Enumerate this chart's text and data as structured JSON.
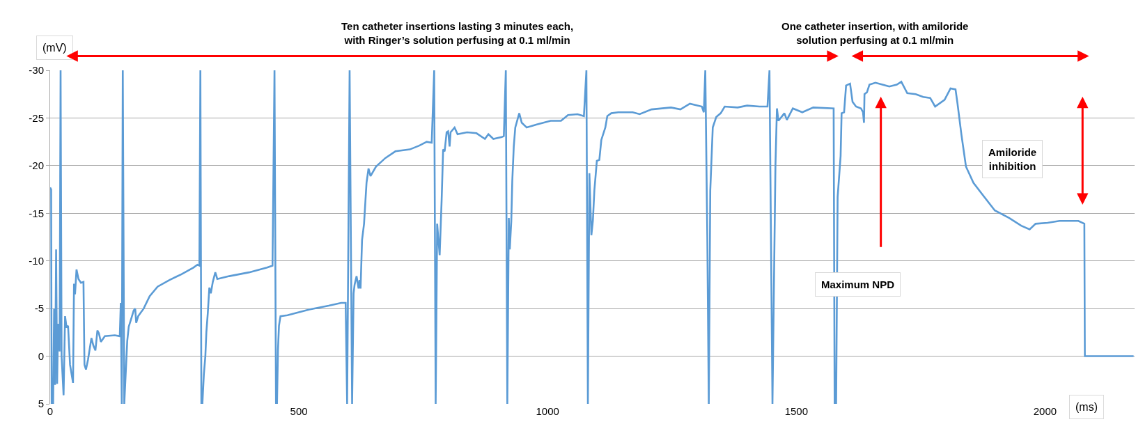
{
  "chart_data": {
    "type": "line",
    "xlabel": "(ms)",
    "ylabel": "(mV)",
    "annotations": [
      "Ten catheter insertions lasting 3 minutes each,\nwith Ringer’s solution perfusing at 0.1 ml/min",
      "One catheter insertion, with amiloride\nsolution perfusing at 0.1 ml/min",
      "Maximum NPD",
      "Amiloride\ninhibition"
    ],
    "x": [
      0,
      2,
      3,
      6,
      8,
      10,
      12,
      14,
      16,
      19,
      21,
      23,
      27,
      30,
      33,
      36,
      40,
      46,
      48,
      50,
      53,
      57,
      62,
      67,
      69,
      72,
      76,
      83,
      87,
      91,
      95,
      98,
      102,
      110,
      130,
      140,
      142,
      144,
      146,
      149,
      152,
      155,
      158,
      164,
      168,
      171,
      173,
      177,
      188,
      200,
      216,
      240,
      264,
      288,
      296,
      300,
      302,
      304,
      306,
      309,
      312,
      314,
      317,
      320,
      323,
      327,
      332,
      336,
      360,
      400,
      436,
      447,
      451,
      454,
      456,
      458,
      460,
      463,
      477,
      521,
      560,
      585,
      594,
      597,
      602,
      607,
      610,
      612,
      616,
      620,
      622,
      624,
      627,
      631,
      634,
      636,
      640,
      644,
      655,
      674,
      694,
      723,
      742,
      757,
      767,
      772,
      775,
      778,
      783,
      787,
      790,
      793,
      797,
      800,
      803,
      805,
      813,
      819,
      838,
      857,
      874,
      881,
      891,
      908,
      912,
      916,
      919,
      922,
      924,
      927,
      929,
      932,
      935,
      943,
      948,
      958,
      977,
      1006,
      1027,
      1041,
      1060,
      1073,
      1078,
      1081,
      1084,
      1088,
      1091,
      1094,
      1099,
      1104,
      1108,
      1116,
      1120,
      1128,
      1142,
      1171,
      1185,
      1209,
      1248,
      1267,
      1286,
      1310,
      1314,
      1317,
      1321,
      1324,
      1327,
      1332,
      1339,
      1348,
      1356,
      1382,
      1401,
      1426,
      1442,
      1446,
      1452,
      1458,
      1461,
      1464,
      1476,
      1481,
      1493,
      1512,
      1534,
      1575,
      1577,
      1580,
      1583,
      1589,
      1591,
      1596,
      1600,
      1608,
      1613,
      1620,
      1630,
      1634,
      1636,
      1637,
      1642,
      1647,
      1659,
      1673,
      1687,
      1702,
      1711,
      1723,
      1740,
      1755,
      1769,
      1779,
      1798,
      1810,
      1820,
      1824,
      1832,
      1841,
      1856,
      1875,
      1899,
      1928,
      1952,
      1969,
      1981,
      2005,
      2029,
      2053,
      2067,
      2079,
      2080,
      2178
    ],
    "series": [
      {
        "color": "#5b9bd5",
        "values": [
          -17.7,
          -17.5,
          5,
          5,
          -5,
          3,
          -11.2,
          2.9,
          -3.4,
          -0.5,
          -30,
          0,
          4.1,
          -4.2,
          -3,
          -3.2,
          0.9,
          2.8,
          -7.6,
          -6.5,
          -9.1,
          -8.1,
          -7.7,
          -7.8,
          0.9,
          1.4,
          0.4,
          -1.9,
          -1.1,
          -0.6,
          -2.7,
          -2.4,
          -1.5,
          -2.1,
          -2.2,
          -2.1,
          -5.6,
          5,
          -30,
          5,
          1.7,
          -1.6,
          -3.1,
          -4.1,
          -4.8,
          -5,
          -3.5,
          -4.2,
          -5,
          -6.3,
          -7.3,
          -8,
          -8.6,
          -9.3,
          -9.6,
          -9.5,
          -30,
          5,
          5,
          1.9,
          0,
          -2.5,
          -4.6,
          -7.2,
          -6.6,
          -7.8,
          -8.8,
          -8.1,
          -8.4,
          -8.8,
          -9.3,
          -9.5,
          -30,
          5,
          5,
          -0.7,
          -3.2,
          -4.2,
          -4.3,
          -4.9,
          -5.3,
          -5.6,
          -5.6,
          5,
          -30,
          5,
          -6.6,
          -7.5,
          -8.4,
          -7.1,
          -8,
          -7.1,
          -12.2,
          -13.9,
          -16.5,
          -18.2,
          -19.7,
          -18.9,
          -19.9,
          -20.8,
          -21.5,
          -21.7,
          -22.1,
          -22.5,
          -22.4,
          -30,
          5,
          -13.9,
          -10.6,
          -16.4,
          -21.7,
          -21.5,
          -23.5,
          -23.6,
          -22,
          -23.5,
          -24,
          -23.3,
          -23.5,
          -23.4,
          -22.8,
          -23.3,
          -22.8,
          -23,
          -23.1,
          -30,
          5,
          -14.5,
          -11.2,
          -14.2,
          -18.4,
          -22,
          -24,
          -25.5,
          -24.5,
          -24,
          -24.3,
          -24.7,
          -24.7,
          -25.3,
          -25.4,
          -25.2,
          -30,
          5,
          -19.2,
          -12.7,
          -14.2,
          -17.4,
          -20.5,
          -20.6,
          -22.7,
          -24,
          -25.2,
          -25.5,
          -25.6,
          -25.6,
          -25.4,
          -25.9,
          -26.1,
          -25.9,
          -26.5,
          -26.2,
          -25.6,
          -30,
          -12.7,
          5,
          -17.4,
          -24,
          -25.1,
          -25.5,
          -26.2,
          -26.1,
          -26.3,
          -26.2,
          -26.2,
          -30,
          5,
          -20,
          -26,
          -24.7,
          -25.5,
          -24.8,
          -26,
          -25.6,
          -26.1,
          -26,
          5,
          5,
          -16.7,
          -21,
          -25.5,
          -25.6,
          -28.4,
          -28.6,
          -26.7,
          -26.2,
          -26,
          -25.6,
          -24.5,
          -27.5,
          -27.7,
          -28.5,
          -28.7,
          -28.5,
          -28.3,
          -28.5,
          -28.8,
          -27.6,
          -27.5,
          -27.2,
          -27.1,
          -26.2,
          -26.9,
          -28.1,
          -28,
          -26.5,
          -23.2,
          -19.9,
          -18.2,
          -16.9,
          -15.3,
          -14.5,
          -13.7,
          -13.3,
          -13.9,
          -14,
          -14.2,
          -14.2,
          -14.2,
          -13.9,
          0,
          0
        ]
      }
    ],
    "xlim": [
      0,
      2180
    ],
    "xticks": [
      0,
      500,
      1000,
      1500,
      2000
    ],
    "ylim": [
      5,
      -30
    ],
    "yticks": [
      5,
      0,
      -5,
      -10,
      -15,
      -20,
      -25,
      -30
    ],
    "grid": "y",
    "marker": "none",
    "line_style": "solid"
  }
}
